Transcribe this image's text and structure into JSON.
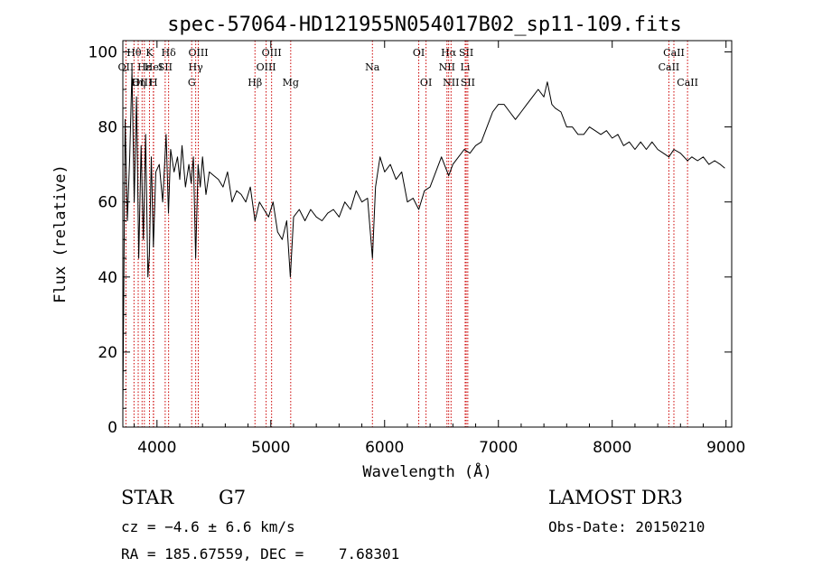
{
  "chart_data": {
    "type": "line",
    "title": "spec-57064-HD121955N054017B02_sp11-109.fits",
    "xlabel": "Wavelength (Å)",
    "ylabel": "Flux (relative)",
    "xlim": [
      3700,
      9050
    ],
    "ylim": [
      0,
      103
    ],
    "x_ticks": [
      4000,
      5000,
      6000,
      7000,
      8000,
      9000
    ],
    "y_ticks": [
      0,
      20,
      40,
      60,
      80,
      100
    ],
    "grid": false,
    "colors": {
      "spectrum": "#000000",
      "line_markers": "#cc0000",
      "text": "#000000"
    },
    "series": [
      {
        "x": [
          3700,
          3720,
          3740,
          3760,
          3780,
          3800,
          3820,
          3840,
          3860,
          3880,
          3900,
          3920,
          3933,
          3950,
          3968,
          3990,
          4020,
          4050,
          4080,
          4101,
          4120,
          4150,
          4180,
          4200,
          4220,
          4250,
          4280,
          4300,
          4320,
          4340,
          4361,
          4380,
          4400,
          4430,
          4460,
          4500,
          4540,
          4580,
          4620,
          4660,
          4700,
          4740,
          4780,
          4820,
          4861,
          4900,
          4940,
          4980,
          5020,
          5060,
          5100,
          5140,
          5172,
          5200,
          5250,
          5300,
          5350,
          5400,
          5450,
          5500,
          5550,
          5600,
          5650,
          5700,
          5750,
          5800,
          5850,
          5893,
          5920,
          5960,
          6000,
          6050,
          6100,
          6150,
          6200,
          6250,
          6300,
          6350,
          6400,
          6450,
          6500,
          6563,
          6600,
          6650,
          6700,
          6750,
          6800,
          6850,
          6900,
          6950,
          7000,
          7050,
          7100,
          7150,
          7200,
          7250,
          7300,
          7350,
          7400,
          7430,
          7470,
          7500,
          7550,
          7600,
          7650,
          7700,
          7750,
          7800,
          7850,
          7900,
          7950,
          8000,
          8050,
          8100,
          8150,
          8200,
          8250,
          8300,
          8350,
          8400,
          8450,
          8498,
          8542,
          8600,
          8662,
          8700,
          8750,
          8800,
          8850,
          8900,
          8950,
          8990
        ],
        "y": [
          5,
          82,
          55,
          72,
          95,
          60,
          88,
          45,
          75,
          50,
          78,
          40,
          46,
          72,
          48,
          68,
          70,
          60,
          78,
          57,
          74,
          68,
          72,
          66,
          75,
          64,
          70,
          65,
          72,
          45,
          70,
          64,
          72,
          62,
          68,
          67,
          66,
          64,
          68,
          60,
          63,
          62,
          60,
          64,
          55,
          60,
          58,
          56,
          60,
          52,
          50,
          55,
          40,
          56,
          58,
          55,
          58,
          56,
          55,
          57,
          58,
          56,
          60,
          58,
          63,
          60,
          61,
          45,
          64,
          72,
          68,
          70,
          66,
          68,
          60,
          61,
          58,
          63,
          64,
          68,
          72,
          67,
          70,
          72,
          74,
          73,
          75,
          76,
          80,
          84,
          86,
          86,
          84,
          82,
          84,
          86,
          88,
          90,
          88,
          92,
          86,
          85,
          84,
          80,
          80,
          78,
          78,
          80,
          79,
          78,
          79,
          77,
          78,
          75,
          76,
          74,
          76,
          74,
          76,
          74,
          73,
          72,
          74,
          73,
          71,
          72,
          71,
          72,
          70,
          71,
          70,
          69
        ]
      }
    ],
    "spectral_lines": [
      {
        "label": "Hθ",
        "wavelength": 3798,
        "row": 1
      },
      {
        "label": "OII",
        "wavelength": 3727,
        "row": 2
      },
      {
        "label": "OIII",
        "wavelength": 3869,
        "row": 3
      },
      {
        "label": "K",
        "wavelength": 3934,
        "row": 1
      },
      {
        "label": "Hε",
        "wavelength": 3889,
        "row": 2
      },
      {
        "label": "Hη",
        "wavelength": 3835,
        "row": 3
      },
      {
        "label": "HeI",
        "wavelength": 3970,
        "row": 2
      },
      {
        "label": "H",
        "wavelength": 3968,
        "row": 3
      },
      {
        "label": "Hδ",
        "wavelength": 4102,
        "row": 1
      },
      {
        "label": "SII",
        "wavelength": 4072,
        "row": 2
      },
      {
        "label": "OIII",
        "wavelength": 4363,
        "row": 1
      },
      {
        "label": "Hγ",
        "wavelength": 4340,
        "row": 2
      },
      {
        "label": "G",
        "wavelength": 4305,
        "row": 3
      },
      {
        "label": "Hβ",
        "wavelength": 4861,
        "row": 3
      },
      {
        "label": "OIII",
        "wavelength": 5007,
        "row": 1
      },
      {
        "label": "OIII",
        "wavelength": 4959,
        "row": 2
      },
      {
        "label": "Mg",
        "wavelength": 5175,
        "row": 3
      },
      {
        "label": "Na",
        "wavelength": 5893,
        "row": 2
      },
      {
        "label": "OI",
        "wavelength": 6300,
        "row": 1
      },
      {
        "label": "OI",
        "wavelength": 6364,
        "row": 3
      },
      {
        "label": "Hα",
        "wavelength": 6563,
        "row": 1
      },
      {
        "label": "NII",
        "wavelength": 6548,
        "row": 2
      },
      {
        "label": "NII",
        "wavelength": 6584,
        "row": 3
      },
      {
        "label": "SII",
        "wavelength": 6717,
        "row": 1
      },
      {
        "label": "Li",
        "wavelength": 6708,
        "row": 2
      },
      {
        "label": "SII",
        "wavelength": 6731,
        "row": 3
      },
      {
        "label": "CaII",
        "wavelength": 8542,
        "row": 1
      },
      {
        "label": "CaII",
        "wavelength": 8498,
        "row": 2
      },
      {
        "label": "CaII",
        "wavelength": 8662,
        "row": 3
      }
    ]
  },
  "info": {
    "class_label": "STAR",
    "subclass": "G7",
    "survey": "LAMOST DR3",
    "redshift_text": "cz = −4.6 ± 6.6 km/s",
    "obs_date_text": "Obs-Date: 20150210",
    "coords_text": "RA = 185.67559, DEC =    7.68301"
  }
}
